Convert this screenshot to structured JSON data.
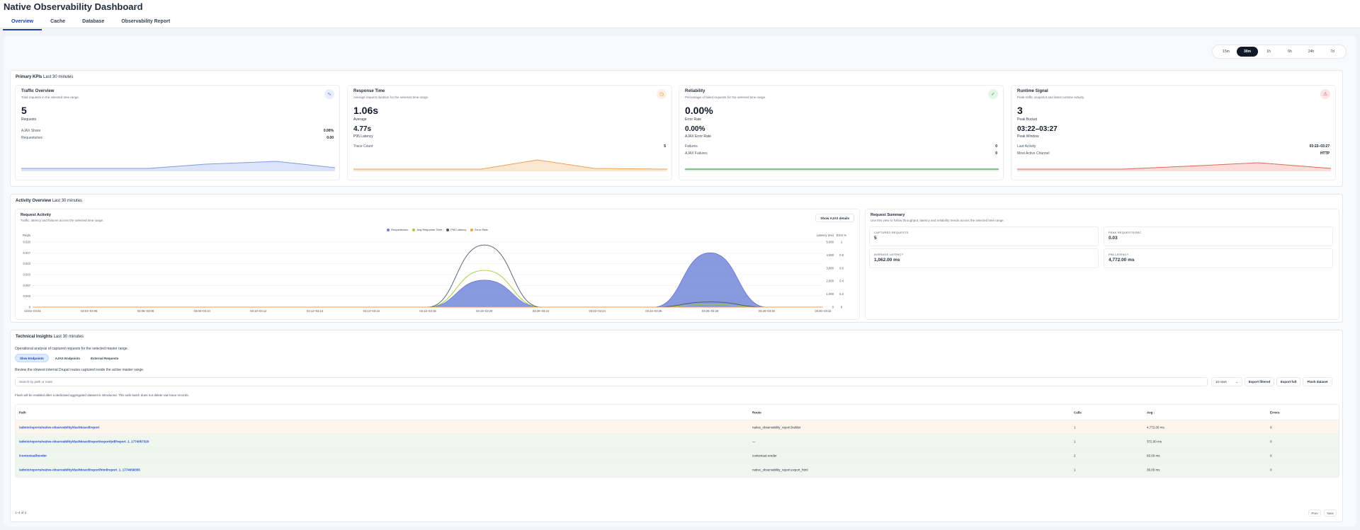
{
  "header": {
    "title": "Native Observability Dashboard",
    "tabs": [
      "Overview",
      "Cache",
      "Database",
      "Observability Report"
    ]
  },
  "time_range": {
    "options": [
      "15m",
      "30m",
      "1h",
      "6h",
      "24h",
      "7d"
    ],
    "selected": "30m"
  },
  "kpis": {
    "section_title": "Primary KPIs",
    "section_range": "Last 30 minutes",
    "traffic": {
      "title": "Traffic Overview",
      "subtitle": "Total requests in the selected time range.",
      "value": "5",
      "value_label": "Requests",
      "rows": [
        {
          "label": "AJAX Share",
          "value": "0.00%"
        },
        {
          "label": "Requests/sec",
          "value": "0.00"
        }
      ]
    },
    "response": {
      "title": "Response Time",
      "subtitle": "Average request duration for the selected time range.",
      "value": "1.06s",
      "value_label": "Average",
      "secondary": "4.77s",
      "secondary_label": "P95 Latency",
      "rows": [
        {
          "label": "Trace Count",
          "value": "5"
        }
      ]
    },
    "reliability": {
      "title": "Reliability",
      "subtitle": "Percentage of failed requests for the selected time range.",
      "value": "0.00%",
      "value_label": "Error Rate",
      "secondary": "0.00%",
      "secondary_label": "AJAX Error Rate",
      "rows": [
        {
          "label": "Failures",
          "value": "0"
        },
        {
          "label": "AJAX Failures",
          "value": "0"
        }
      ]
    },
    "runtime": {
      "title": "Runtime Signal",
      "subtitle": "Peak traffic snapshot and latest runtime activity.",
      "value": "3",
      "value_label": "Peak Bucket",
      "secondary": "03:22–03:27",
      "secondary_label": "Peak Window",
      "rows": [
        {
          "label": "Last Activity",
          "value": "03:22–03:27"
        },
        {
          "label": "Most Active Channel",
          "value": "HTTP"
        }
      ]
    }
  },
  "activity": {
    "section_title": "Activity Overview",
    "section_range": "Last 30 minutes",
    "request_activity": {
      "title": "Request Activity",
      "subtitle": "Traffic, latency and failures across the selected time range.",
      "ajax_button": "Show AJAX details"
    },
    "summary": {
      "title": "Request Summary",
      "subtitle": "Use this view to follow throughput, latency and reliability trends across the selected time range.",
      "cards": [
        {
          "label": "CAPTURED REQUESTS",
          "value": "5"
        },
        {
          "label": "PEAK REQUESTS/SEC",
          "value": "0.03"
        },
        {
          "label": "AVERAGE LATENCY",
          "value": "1,062.00 ms"
        },
        {
          "label": "P95 LATENCY",
          "value": "4,772.00 ms"
        }
      ]
    }
  },
  "chart_data": {
    "type": "area",
    "title": "Request Activity",
    "x": [
      "03:02–03:04",
      "03:04–03:06",
      "03:06–03:08",
      "03:08–03:10",
      "03:10–03:12",
      "03:12–03:14",
      "03:14–03:16",
      "03:16–03:18",
      "03:18–03:20",
      "03:20–03:22",
      "03:22–03:24",
      "03:24–03:26",
      "03:26–03:28",
      "03:28–03:30",
      "03:30–03:32"
    ],
    "series": [
      {
        "name": "Requests/sec",
        "axis": "Req/s",
        "color": "#6b7fd7",
        "values": [
          0,
          0,
          0,
          0,
          0,
          0,
          0,
          0,
          0.0083,
          0,
          0,
          0,
          0.0167,
          0,
          0
        ]
      },
      {
        "name": "Avg Response Time",
        "axis": "Latency (ms)",
        "color": "#a3c93a",
        "values": [
          0,
          0,
          0,
          0,
          0,
          0,
          0,
          0,
          2820,
          0,
          0,
          0,
          215,
          0,
          0
        ]
      },
      {
        "name": "P95 Latency",
        "axis": "Latency (ms)",
        "color": "#4b5563",
        "values": [
          0,
          0,
          0,
          0,
          0,
          0,
          0,
          0,
          4772,
          0,
          0,
          0,
          400,
          0,
          0
        ]
      },
      {
        "name": "Error Rate",
        "axis": "Error %",
        "color": "#f59e42",
        "values": [
          0,
          0,
          0,
          0,
          0,
          0,
          0,
          0,
          0,
          0,
          0,
          0,
          0,
          0,
          0
        ]
      }
    ],
    "y_left": {
      "label": "Req/s",
      "ticks": [
        "0",
        "0.003",
        "0.007",
        "0.010",
        "0.013",
        "0.017",
        "0.020"
      ],
      "ylim": [
        0,
        0.02
      ]
    },
    "y_mid": {
      "label": "Latency (ms)",
      "ticks": [
        "0",
        "1,000",
        "2,000",
        "3,000",
        "4,000",
        "5,000"
      ],
      "ylim": [
        0,
        5000
      ]
    },
    "y_right": {
      "label": "Error %",
      "ticks": [
        "0",
        "0.2",
        "0.4",
        "0.6",
        "0.8",
        "1"
      ],
      "ylim": [
        0,
        1
      ]
    },
    "legend_position": "top-center"
  },
  "insights": {
    "section_title": "Technical Insights",
    "section_range": "Last 30 minutes",
    "description": "Operational analysis of captured requests for the selected master range.",
    "subtabs": [
      "Slow Endpoints",
      "AJAX Endpoints",
      "External Requests"
    ],
    "subtab_desc": "Review the slowest internal Drupal routes captured inside the active master range.",
    "search_placeholder": "Search by path or route",
    "rows_select": "10 rows",
    "buttons": {
      "export_filtered": "Export filtered",
      "export_full": "Export full",
      "flush": "Flush dataset"
    },
    "flush_note": "Flush will be enabled after a dedicated aggregated dataset is introduced. This safe batch does not delete raw trace records.",
    "columns": [
      "Path",
      "Route",
      "Calls",
      "Avg ↓",
      "Errors"
    ],
    "rows": [
      {
        "path": "/admin/reports/native-observability/dashboard/report",
        "route": "native_observability_report.builder",
        "calls": "1",
        "avg": "4,772.00 ms",
        "errors": "0",
        "tone": "#fdf4ec"
      },
      {
        "path": "/admin/reports/native-observability/dashboard/report/export/pdf/report_1_1774057320",
        "route": "—",
        "calls": "1",
        "avg": "372.00 ms",
        "errors": "0",
        "tone": "#eef6ee"
      },
      {
        "path": "/contextual/render",
        "route": "contextual.render",
        "calls": "2",
        "avg": "65.00 ms",
        "errors": "0",
        "tone": "#eef6ee"
      },
      {
        "path": "/admin/reports/native-observability/dashboard/report/html/report_1_1774058355",
        "route": "native_observability_report.export_html",
        "calls": "1",
        "avg": "36.00 ms",
        "errors": "0",
        "tone": "#eef6ee"
      }
    ],
    "footer": "1–4 of 4",
    "prev": "Prev",
    "next": "Next"
  }
}
